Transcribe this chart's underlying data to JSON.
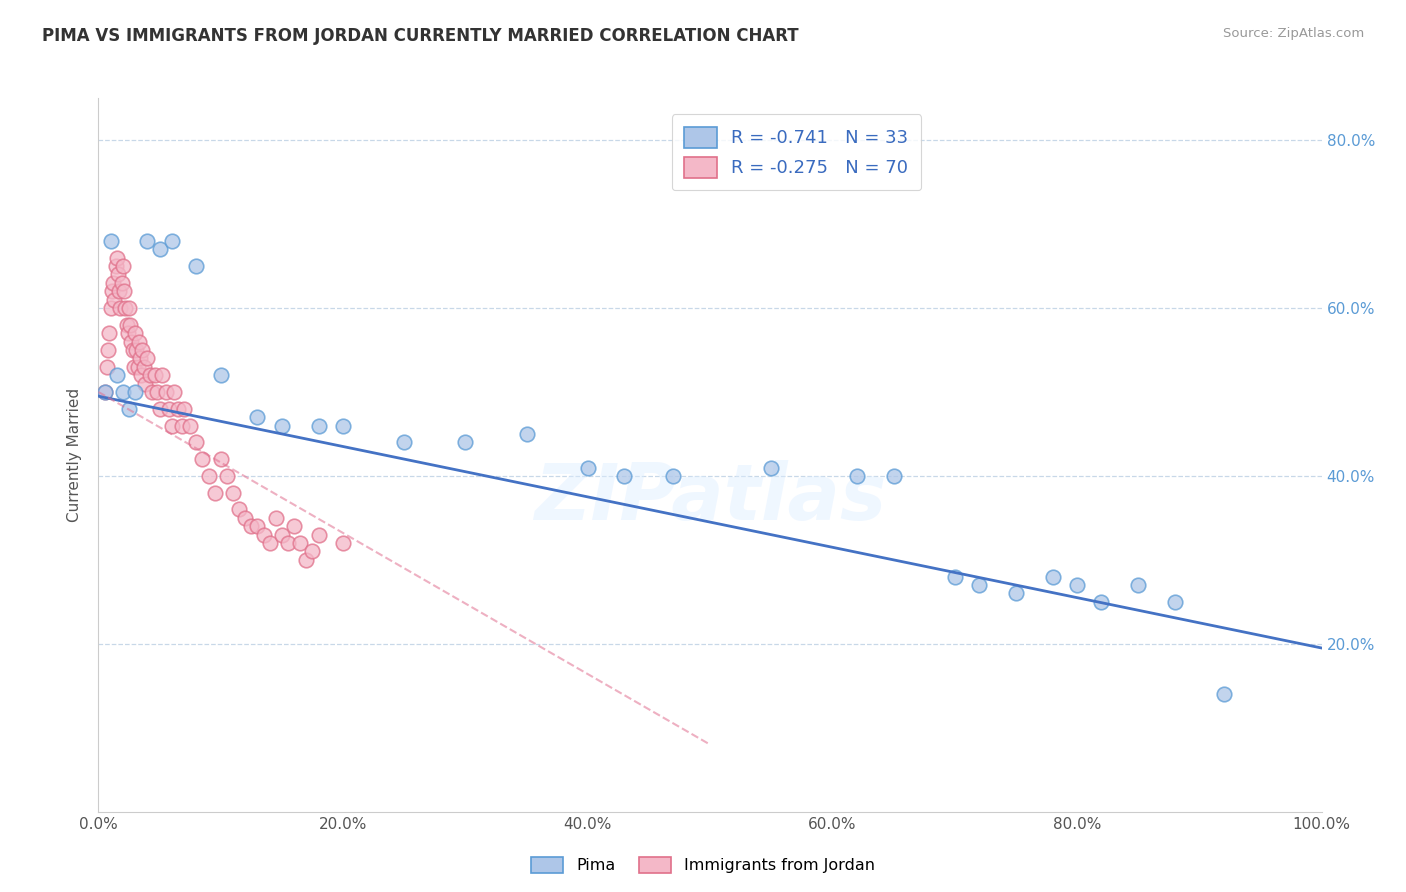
{
  "title": "PIMA VS IMMIGRANTS FROM JORDAN CURRENTLY MARRIED CORRELATION CHART",
  "source": "Source: ZipAtlas.com",
  "ylabel": "Currently Married",
  "xlim": [
    0.0,
    1.0
  ],
  "ylim": [
    0.0,
    0.85
  ],
  "xtick_labels": [
    "0.0%",
    "20.0%",
    "40.0%",
    "60.0%",
    "80.0%",
    "100.0%"
  ],
  "xtick_vals": [
    0.0,
    0.2,
    0.4,
    0.6,
    0.8,
    1.0
  ],
  "ytick_labels": [
    "20.0%",
    "40.0%",
    "60.0%",
    "80.0%"
  ],
  "ytick_vals": [
    0.2,
    0.4,
    0.6,
    0.8
  ],
  "watermark": "ZIPatlas",
  "legend_blue_label": "R = -0.741   N = 33",
  "legend_pink_label": "R = -0.275   N = 70",
  "pima_color": "#aec6e8",
  "jordan_color": "#f4b8c8",
  "pima_edge_color": "#5b9bd5",
  "jordan_edge_color": "#e0708a",
  "blue_line_color": "#4472c4",
  "pink_line_color": "#e07090",
  "grid_color": "#c8d8e8",
  "background_color": "#ffffff",
  "pima_x": [
    0.005,
    0.01,
    0.015,
    0.02,
    0.025,
    0.03,
    0.04,
    0.05,
    0.06,
    0.08,
    0.1,
    0.13,
    0.15,
    0.18,
    0.2,
    0.25,
    0.3,
    0.35,
    0.4,
    0.43,
    0.47,
    0.55,
    0.62,
    0.65,
    0.7,
    0.72,
    0.75,
    0.78,
    0.8,
    0.82,
    0.85,
    0.88,
    0.92
  ],
  "pima_y": [
    0.5,
    0.68,
    0.52,
    0.5,
    0.48,
    0.5,
    0.68,
    0.67,
    0.68,
    0.65,
    0.52,
    0.47,
    0.46,
    0.46,
    0.46,
    0.44,
    0.44,
    0.45,
    0.41,
    0.4,
    0.4,
    0.41,
    0.4,
    0.4,
    0.28,
    0.27,
    0.26,
    0.28,
    0.27,
    0.25,
    0.27,
    0.25,
    0.14
  ],
  "jordan_x": [
    0.005,
    0.007,
    0.008,
    0.009,
    0.01,
    0.011,
    0.012,
    0.013,
    0.014,
    0.015,
    0.016,
    0.017,
    0.018,
    0.019,
    0.02,
    0.021,
    0.022,
    0.023,
    0.024,
    0.025,
    0.026,
    0.027,
    0.028,
    0.029,
    0.03,
    0.031,
    0.032,
    0.033,
    0.034,
    0.035,
    0.036,
    0.037,
    0.038,
    0.04,
    0.042,
    0.044,
    0.046,
    0.048,
    0.05,
    0.052,
    0.055,
    0.058,
    0.06,
    0.062,
    0.065,
    0.068,
    0.07,
    0.075,
    0.08,
    0.085,
    0.09,
    0.095,
    0.1,
    0.105,
    0.11,
    0.115,
    0.12,
    0.125,
    0.13,
    0.135,
    0.14,
    0.145,
    0.15,
    0.155,
    0.16,
    0.165,
    0.17,
    0.175,
    0.18,
    0.2
  ],
  "jordan_y": [
    0.5,
    0.53,
    0.55,
    0.57,
    0.6,
    0.62,
    0.63,
    0.61,
    0.65,
    0.66,
    0.64,
    0.62,
    0.6,
    0.63,
    0.65,
    0.62,
    0.6,
    0.58,
    0.57,
    0.6,
    0.58,
    0.56,
    0.55,
    0.53,
    0.57,
    0.55,
    0.53,
    0.56,
    0.54,
    0.52,
    0.55,
    0.53,
    0.51,
    0.54,
    0.52,
    0.5,
    0.52,
    0.5,
    0.48,
    0.52,
    0.5,
    0.48,
    0.46,
    0.5,
    0.48,
    0.46,
    0.48,
    0.46,
    0.44,
    0.42,
    0.4,
    0.38,
    0.42,
    0.4,
    0.38,
    0.36,
    0.35,
    0.34,
    0.34,
    0.33,
    0.32,
    0.35,
    0.33,
    0.32,
    0.34,
    0.32,
    0.3,
    0.31,
    0.33,
    0.32
  ],
  "blue_line_x": [
    0.0,
    1.0
  ],
  "blue_line_y": [
    0.495,
    0.195
  ],
  "pink_line_x": [
    0.0,
    0.5
  ],
  "pink_line_y": [
    0.5,
    0.08
  ]
}
